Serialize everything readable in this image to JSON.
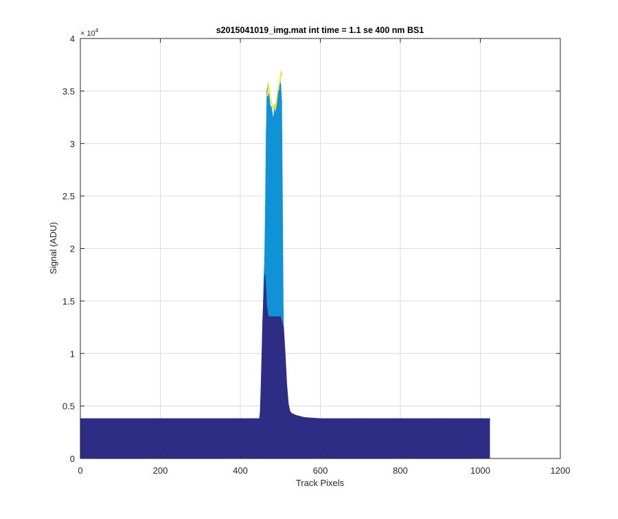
{
  "chart_data": {
    "type": "area",
    "title": "s2015041019_img.mat int time = 1.1 se  400 nm BS1",
    "xlabel": "Track Pixels",
    "ylabel": "Signal (ADU)",
    "xlim": [
      0,
      1200
    ],
    "ylim": [
      0,
      40000
    ],
    "x_ticks": [
      0,
      200,
      400,
      600,
      800,
      1000,
      1200
    ],
    "x_tick_labels": [
      "0",
      "200",
      "400",
      "600",
      "800",
      "1000",
      "1200"
    ],
    "y_ticks": [
      0,
      5000,
      10000,
      15000,
      20000,
      25000,
      30000,
      35000,
      40000
    ],
    "y_tick_labels": [
      "0",
      "0.5",
      "1",
      "1.5",
      "2",
      "2.5",
      "3",
      "3.5",
      "4"
    ],
    "y_exponent_label": "× 10",
    "y_exponent_power": "4",
    "grid": true,
    "series": [
      {
        "color": "#0f93d6",
        "x": [
          450,
          452,
          454,
          456,
          458,
          460,
          462,
          464,
          466,
          468,
          470,
          472,
          474,
          476,
          478,
          480,
          482,
          484,
          486,
          488,
          490,
          492,
          494,
          496,
          498,
          500,
          502,
          504,
          506,
          508,
          510,
          512,
          514,
          516
        ],
        "y": [
          3800,
          6000,
          9000,
          13000,
          17000,
          19000,
          24000,
          31000,
          35000,
          35500,
          34500,
          35000,
          34000,
          33500,
          33500,
          33000,
          32500,
          33000,
          33500,
          33000,
          33500,
          34000,
          35000,
          35000,
          35500,
          36000,
          35500,
          34000,
          25000,
          14000,
          9000,
          6000,
          4500,
          3800
        ]
      },
      {
        "color": "#2e2d86",
        "x": [
          0,
          440,
          448,
          450,
          452,
          454,
          456,
          458,
          460,
          462,
          464,
          466,
          468,
          470,
          472,
          474,
          476,
          478,
          480,
          484,
          488,
          492,
          496,
          500,
          504,
          508,
          512,
          516,
          520,
          524,
          528,
          540,
          560,
          580,
          600,
          700,
          800,
          900,
          1024
        ],
        "y": [
          3800,
          3800,
          3800,
          4500,
          7000,
          10000,
          13000,
          15000,
          16500,
          17500,
          16000,
          14500,
          14000,
          13500,
          13500,
          13500,
          13500,
          13500,
          13500,
          13500,
          13500,
          13500,
          13500,
          13500,
          13000,
          12500,
          10000,
          7000,
          5200,
          4500,
          4300,
          4100,
          3900,
          3850,
          3800,
          3800,
          3800,
          3800,
          3800
        ]
      },
      {
        "color": "#f9e21b",
        "x": [
          468,
          470,
          472,
          474,
          476,
          478,
          480,
          482,
          484,
          486,
          488,
          490,
          492,
          494,
          496,
          498,
          500,
          502,
          504
        ],
        "y": [
          34500,
          35800,
          35200,
          34500,
          34200,
          33800,
          33600,
          33200,
          33400,
          33800,
          33400,
          33800,
          34400,
          35200,
          35400,
          35800,
          36200,
          36900,
          36400
        ]
      }
    ]
  }
}
